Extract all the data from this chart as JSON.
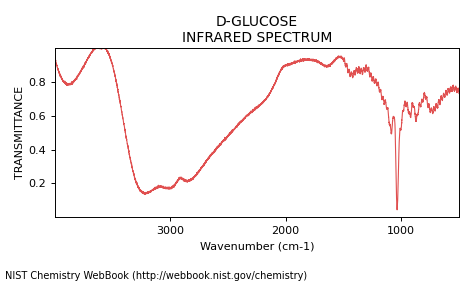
{
  "title_line1": "D-GLUCOSE",
  "title_line2": "INFRARED SPECTRUM",
  "xlabel": "Wavenumber (cm-1)",
  "ylabel": "TRANSMITTANCE",
  "footer": "NIST Chemistry WebBook (http://webbook.nist.gov/chemistry)",
  "line_color": "#e05050",
  "bg_color": "#ffffff",
  "xlim": [
    500,
    4000
  ],
  "ylim": [
    0,
    1.0
  ],
  "x_ticks": [
    1000,
    2000,
    3000
  ],
  "y_ticks": [
    0.2,
    0.4,
    0.6,
    0.8
  ],
  "title_fontsize": 10,
  "axis_fontsize": 8,
  "footer_fontsize": 7
}
